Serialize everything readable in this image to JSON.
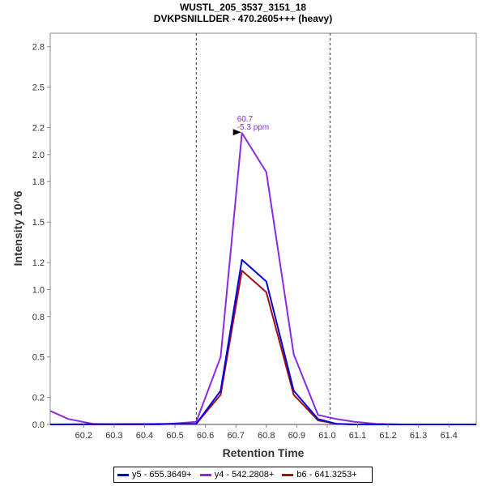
{
  "chart_data": {
    "type": "line",
    "title": "WUSTL_205_3537_3151_18",
    "subtitle": "DVKPSNILLDER - 470.2605+++ (heavy)",
    "xlabel": "Retention Time",
    "ylabel": "Intensity 10^6",
    "xlim": [
      60.09,
      61.49
    ],
    "ylim": [
      0,
      2.9
    ],
    "x_ticks": [
      "60.2",
      "60.3",
      "60.4",
      "60.5",
      "60.6",
      "60.7",
      "60.8",
      "60.9",
      "61.0",
      "61.1",
      "61.2",
      "61.3",
      "61.4"
    ],
    "y_ticks": [
      "0.0",
      "0.2",
      "0.5",
      "0.8",
      "1.0",
      "1.2",
      "1.5",
      "1.8",
      "2.0",
      "2.2",
      "2.5",
      "2.8"
    ],
    "grid": false,
    "legend_position": "bottom",
    "markers": [
      60.57,
      61.01
    ],
    "annotation": {
      "x": 60.72,
      "y": 2.16,
      "line1": "60.7",
      "line2": "-5.3 ppm",
      "color": "#8a2be2"
    },
    "series": [
      {
        "name": "y5 - 655.3649+",
        "color": "#0000dd",
        "x": [
          60.09,
          60.57,
          60.65,
          60.72,
          60.8,
          60.89,
          60.97,
          61.03,
          61.09,
          61.49
        ],
        "y": [
          0,
          0.005,
          0.25,
          1.22,
          1.06,
          0.25,
          0.04,
          0.005,
          0,
          0
        ]
      },
      {
        "name": "y4 - 542.2808+",
        "color": "#8a2be2",
        "x": [
          60.09,
          60.15,
          60.23,
          60.3,
          60.38,
          60.45,
          60.52,
          60.57,
          60.65,
          60.72,
          60.8,
          60.89,
          60.97,
          61.03,
          61.09,
          61.16,
          61.25,
          61.49
        ],
        "y": [
          0.1,
          0.04,
          0.005,
          0,
          0,
          0,
          0.01,
          0.02,
          0.5,
          2.16,
          1.87,
          0.52,
          0.07,
          0.04,
          0.02,
          0.005,
          0,
          0
        ]
      },
      {
        "name": "b6 - 641.3253+",
        "color": "#a01010",
        "x": [
          60.09,
          60.57,
          60.65,
          60.72,
          60.8,
          60.89,
          60.97,
          61.03,
          61.09,
          61.49
        ],
        "y": [
          0,
          0.005,
          0.22,
          1.14,
          0.98,
          0.22,
          0.03,
          0.005,
          0,
          0
        ]
      }
    ]
  }
}
